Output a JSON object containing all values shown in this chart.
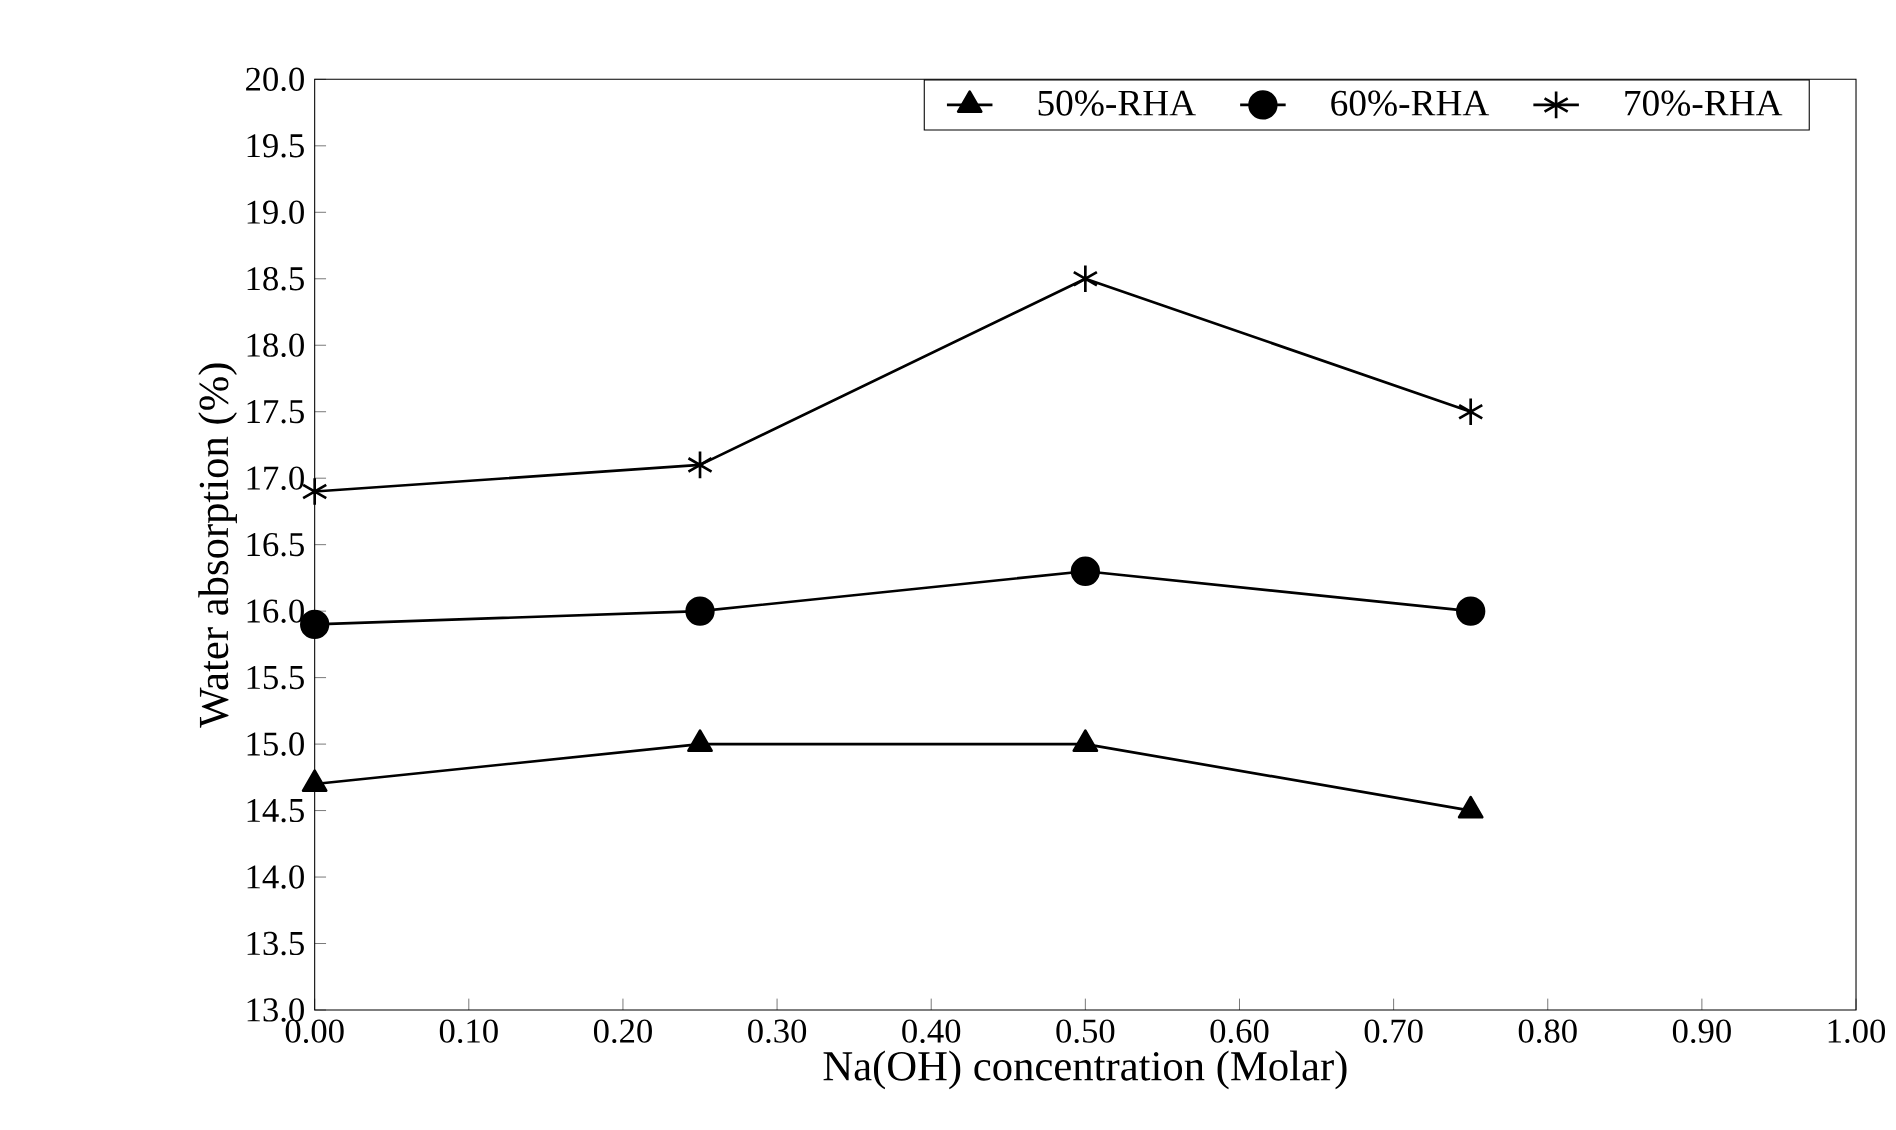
{
  "chart_data": {
    "type": "line",
    "xlabel": "Na(OH) concentration (Molar)",
    "ylabel": "Water absorption (%)",
    "x": [
      0,
      0.25,
      0.5,
      0.75
    ],
    "series": [
      {
        "name": "50%-RHA",
        "color": "#000000",
        "marker": "triangle",
        "values": [
          14.7,
          15.0,
          15.0,
          14.5
        ]
      },
      {
        "name": "60%-RHA",
        "color": "#000000",
        "marker": "circle",
        "values": [
          15.9,
          16.0,
          16.3,
          16.0
        ]
      },
      {
        "name": "70%-RHA",
        "color": "#000000",
        "marker": "cross",
        "values": [
          16.9,
          17.1,
          18.5,
          17.5
        ]
      }
    ],
    "xlim": [
      0,
      1
    ],
    "xticks": [
      {
        "value": 0,
        "label": "0.00"
      },
      {
        "value": 0.1,
        "label": "0.10"
      },
      {
        "value": 0.2,
        "label": "0.20"
      },
      {
        "value": 0.3,
        "label": "0.30"
      },
      {
        "value": 0.4,
        "label": "0.40"
      },
      {
        "value": 0.5,
        "label": "0.50"
      },
      {
        "value": 0.6,
        "label": "0.60"
      },
      {
        "value": 0.7,
        "label": "0.70"
      },
      {
        "value": 0.8,
        "label": "0.80"
      },
      {
        "value": 0.9,
        "label": "0.90"
      },
      {
        "value": 1,
        "label": "1.00"
      }
    ],
    "ylim": [
      13,
      20
    ],
    "yticks": [
      {
        "value": 13,
        "label": "13.0"
      },
      13.5,
      {
        "value": 14,
        "label": "14.0"
      },
      14.5,
      {
        "value": 15,
        "label": "15.0"
      },
      15.5,
      {
        "value": 16,
        "label": "16.0"
      },
      16.5,
      {
        "value": 17,
        "label": "17.0"
      },
      17.5,
      {
        "value": 18,
        "label": "18.0"
      },
      18.5,
      {
        "value": 19,
        "label": "19.0"
      },
      19.5,
      {
        "value": 20,
        "label": "20.0"
      }
    ],
    "grid": false,
    "legend": "top right",
    "line_style": "solid"
  }
}
